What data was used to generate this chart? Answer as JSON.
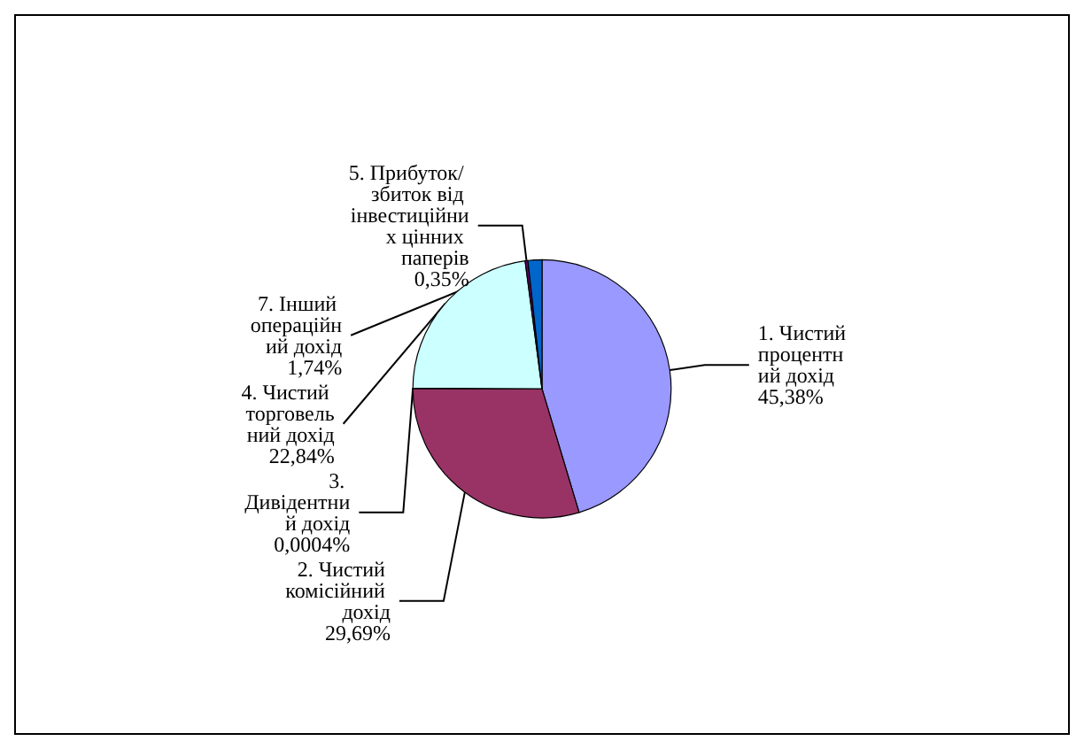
{
  "chart_data": {
    "type": "pie",
    "categories": [
      "1. Чистий процентний дохід",
      "2. Чистий комісійний дохід",
      "3. Дивідентний дохід",
      "4. Чистий торговельний дохід",
      "5. Прибуток/ збиток від інвестиційних цінних паперів",
      "7. Інший операційний дохід"
    ],
    "values": [
      45.38,
      29.69,
      0.0004,
      22.84,
      0.35,
      1.74
    ],
    "value_labels": [
      "45,38%",
      "29,69%",
      "0,0004%",
      "22,84%",
      "0,35%",
      "1,74%"
    ],
    "colors": [
      "#9999ff",
      "#993366",
      "#ffffcc",
      "#ccffff",
      "#660066",
      "#0066cc"
    ],
    "legend": false
  }
}
